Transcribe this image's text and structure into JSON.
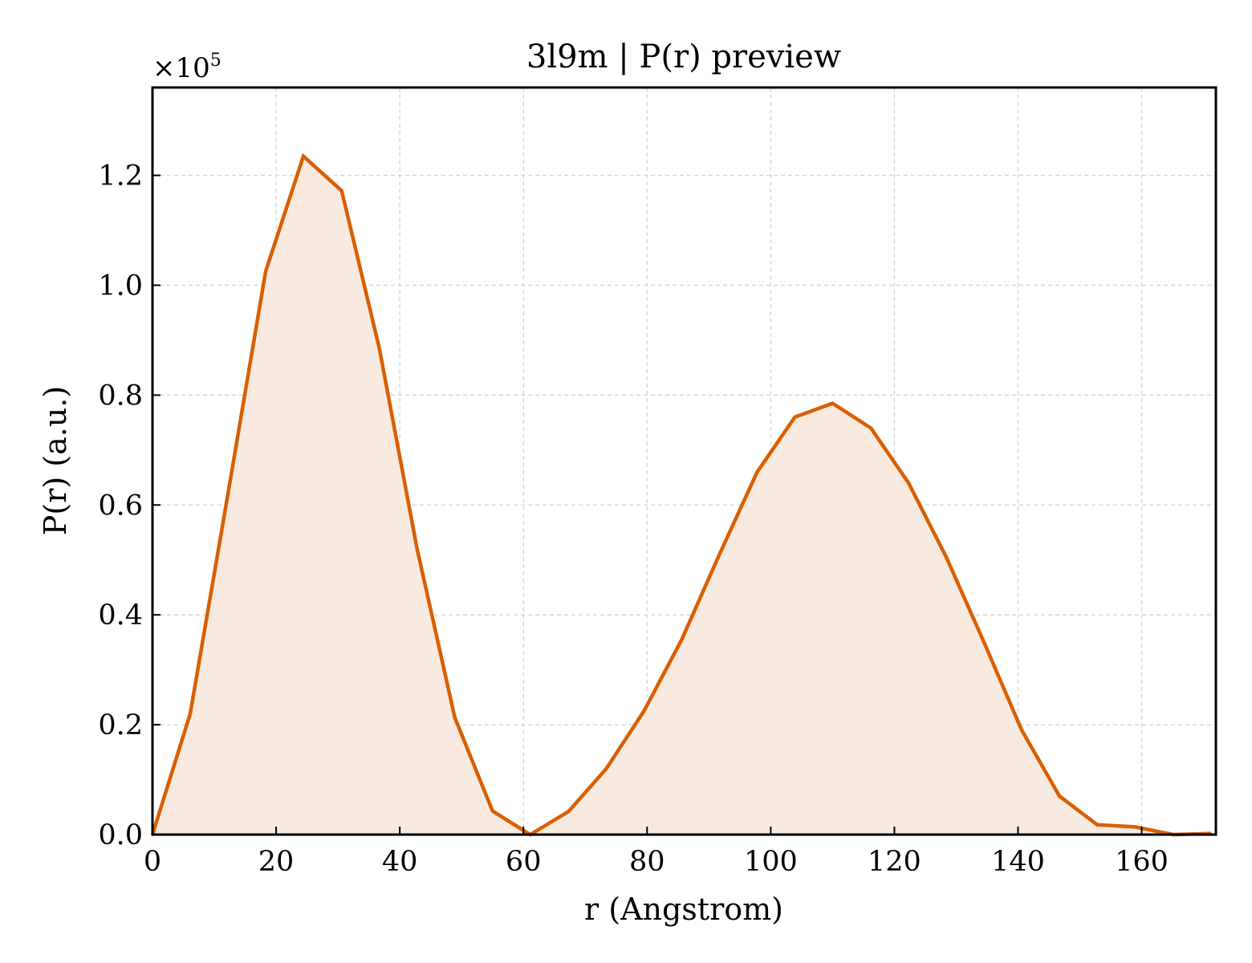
{
  "chart_data": {
    "type": "area",
    "title": "3l9m | P(r) preview",
    "xlabel": "r (Angstrom)",
    "ylabel": "P(r) (a.u.)",
    "y_multiplier_label": "×10⁵",
    "y_multiplier_base": "×10",
    "y_multiplier_exp": "5",
    "xlim": [
      0,
      172
    ],
    "ylim": [
      0,
      1.36
    ],
    "x_ticks": [
      0,
      20,
      40,
      60,
      80,
      100,
      120,
      140,
      160
    ],
    "y_ticks": [
      0.0,
      0.2,
      0.4,
      0.6,
      0.8,
      1.0,
      1.2
    ],
    "x_tick_labels": [
      "0",
      "20",
      "40",
      "60",
      "80",
      "100",
      "120",
      "140",
      "160"
    ],
    "y_tick_labels": [
      "0.0",
      "0.2",
      "0.4",
      "0.6",
      "0.8",
      "1.0",
      "1.2"
    ],
    "grid": true,
    "series": [
      {
        "line_color": "#d95f02",
        "fill_color": "#f9eadf",
        "x": [
          0,
          6.1,
          12.2,
          18.3,
          24.4,
          30.6,
          36.7,
          42.8,
          48.9,
          55.0,
          61.1,
          67.3,
          73.4,
          79.5,
          85.6,
          91.7,
          97.8,
          103.9,
          110.0,
          116.2,
          122.3,
          128.4,
          134.5,
          140.6,
          146.7,
          152.8,
          158.9,
          165.1,
          171.2
        ],
        "y": [
          0.0,
          0.22,
          0.62,
          1.025,
          1.235,
          1.172,
          0.885,
          0.52,
          0.213,
          0.043,
          0.0,
          0.042,
          0.12,
          0.225,
          0.355,
          0.51,
          0.66,
          0.76,
          0.785,
          0.74,
          0.64,
          0.505,
          0.35,
          0.19,
          0.07,
          0.018,
          0.014,
          0.0,
          0.002
        ]
      }
    ]
  }
}
